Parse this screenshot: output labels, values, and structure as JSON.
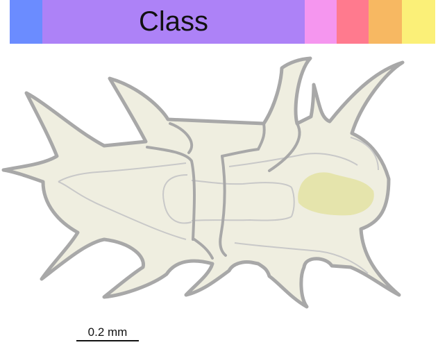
{
  "taxonomy_bar": {
    "active_label": "Class",
    "segments": [
      {
        "key": "a",
        "color": "#6b8cff"
      },
      {
        "key": "class",
        "color": "#ad82f7"
      },
      {
        "key": "b",
        "color": "#f596ef"
      },
      {
        "key": "c",
        "color": "#ff7a8e"
      },
      {
        "key": "d",
        "color": "#f7b862"
      },
      {
        "key": "e",
        "color": "#fbf078"
      }
    ]
  },
  "specimen": {
    "body_fill": "#efeee0",
    "outline_color": "#a8a8a8",
    "inner_line_color": "#c8c8c8",
    "patch_fill": "#e5e4ac"
  },
  "scale_bar": {
    "label": "0.2 mm"
  }
}
